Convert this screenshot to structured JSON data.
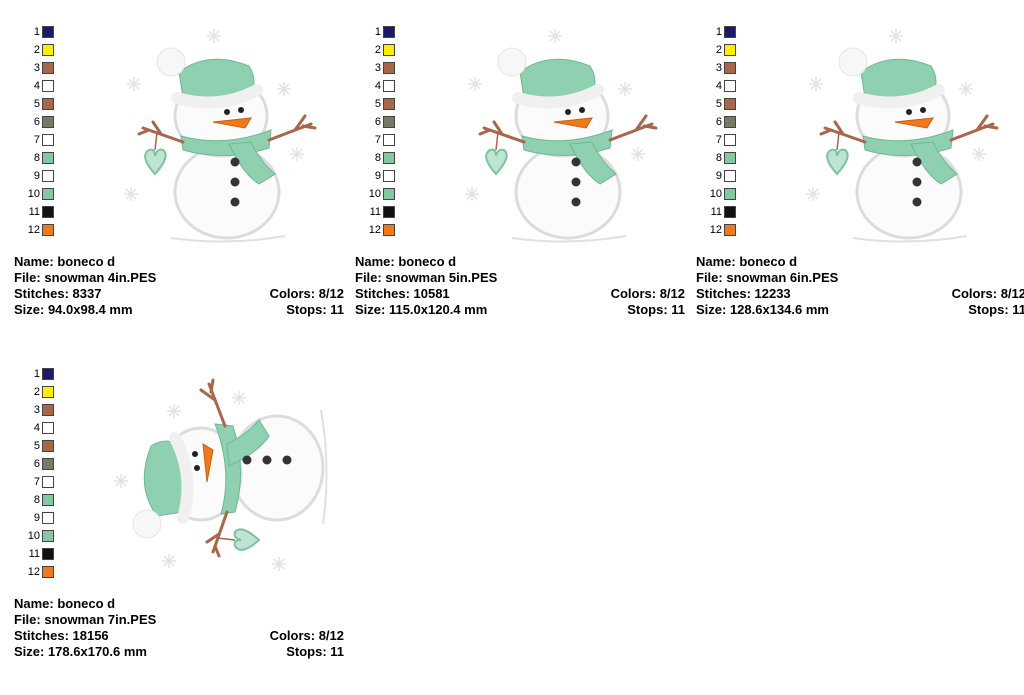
{
  "palette": [
    {
      "num": "1",
      "color": "#1c1a6b"
    },
    {
      "num": "2",
      "color": "#ffee00"
    },
    {
      "num": "3",
      "color": "#a8664a"
    },
    {
      "num": "4",
      "color": "#ffffff"
    },
    {
      "num": "5",
      "color": "#a8664a"
    },
    {
      "num": "6",
      "color": "#737a66"
    },
    {
      "num": "7",
      "color": "#ffffff"
    },
    {
      "num": "8",
      "color": "#86c7a3"
    },
    {
      "num": "9",
      "color": "#ffffff"
    },
    {
      "num": "10",
      "color": "#86c7a3"
    },
    {
      "num": "11",
      "color": "#111111"
    },
    {
      "num": "12",
      "color": "#f07a1a"
    }
  ],
  "designs": [
    {
      "name_line": "Name: boneco d",
      "file_line": "File: snowman 4in.PES",
      "stitches_line": "Stitches: 8337",
      "colors_line": "Colors: 8/12",
      "size_line": "Size: 94.0x98.4 mm",
      "stops_line": "Stops: 11"
    },
    {
      "name_line": "Name: boneco d",
      "file_line": "File: snowman 5in.PES",
      "stitches_line": "Stitches: 10581",
      "colors_line": "Colors: 8/12",
      "size_line": "Size: 115.0x120.4 mm",
      "stops_line": "Stops: 11"
    },
    {
      "name_line": "Name: boneco d",
      "file_line": "File: snowman 6in.PES",
      "stitches_line": "Stitches: 12233",
      "colors_line": "Colors: 8/12",
      "size_line": "Size: 128.6x134.6 mm",
      "stops_line": "Stops: 11"
    },
    {
      "name_line": "Name: boneco d",
      "file_line": "File: snowman 7in.PES",
      "stitches_line": "Stitches: 18156",
      "colors_line": "Colors: 8/12",
      "size_line": "Size: 178.6x170.6 mm",
      "stops_line": "Stops: 11"
    }
  ]
}
